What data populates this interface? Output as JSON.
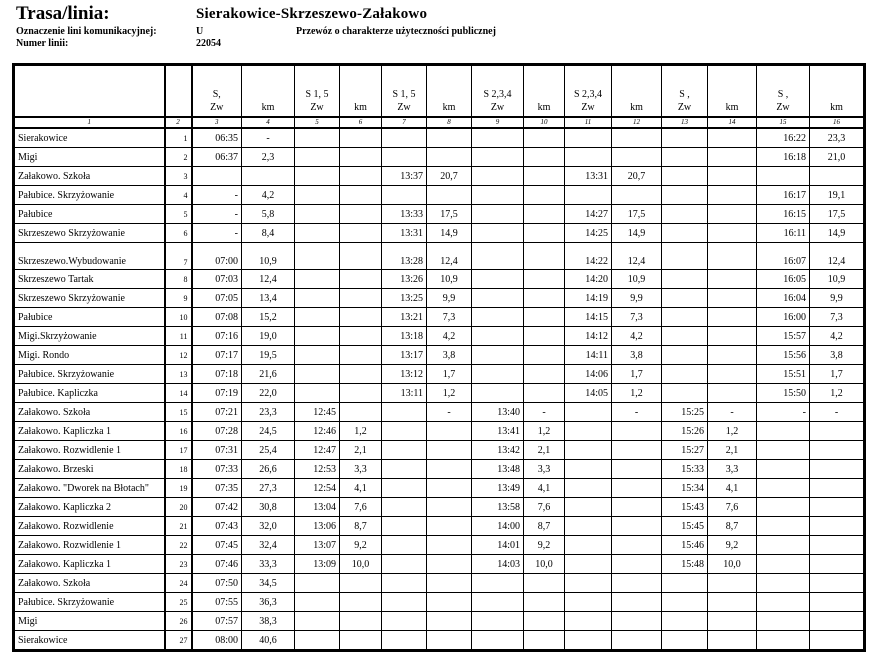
{
  "header": {
    "title": "Trasa/linia:",
    "route": "Sierakowice-Skrzeszewo-Załakowo",
    "designation_label": "Oznaczenie lini komunikacyjnej:",
    "designation_value": "U",
    "line_number_label": "Numer linii:",
    "line_number_value": "22054",
    "service_note": "Przewóz o charakterze użyteczności publicznej"
  },
  "table": {
    "column_headers": [
      "",
      "",
      "S,\nZw",
      "km",
      "S 1, 5\nZw",
      "km",
      "S 1, 5\nZw",
      "km",
      "S 2,3,4\nZw",
      "km",
      "S 2,3,4\nZw",
      "km",
      "S ,\nZw",
      "km",
      "S ,\nZw",
      "km"
    ],
    "column_numbers": [
      "1",
      "2",
      "3",
      "4",
      "5",
      "6",
      "7",
      "8",
      "9",
      "10",
      "11",
      "12",
      "13",
      "14",
      "15",
      "16"
    ],
    "rows": [
      [
        "Sierakowice",
        "1",
        "06:35",
        "-",
        "",
        "",
        "",
        "",
        "",
        "",
        "",
        "",
        "",
        "",
        "16:22",
        "23,3"
      ],
      [
        "Migi",
        "2",
        "06:37",
        "2,3",
        "",
        "",
        "",
        "",
        "",
        "",
        "",
        "",
        "",
        "",
        "16:18",
        "21,0"
      ],
      [
        "Załakowo. Szkoła",
        "3",
        "",
        "",
        "",
        "",
        "13:37",
        "20,7",
        "",
        "",
        "13:31",
        "20,7",
        "",
        "",
        "",
        ""
      ],
      [
        "Pałubice. Skrzyżowanie",
        "4",
        "-",
        "4,2",
        "",
        "",
        "",
        "",
        "",
        "",
        "",
        "",
        "",
        "",
        "16:17",
        "19,1"
      ],
      [
        "Pałubice",
        "5",
        "-",
        "5,8",
        "",
        "",
        "13:33",
        "17,5",
        "",
        "",
        "14:27",
        "17,5",
        "",
        "",
        "16:15",
        "17,5"
      ],
      [
        "Skrzeszewo Skrzyżowanie",
        "6",
        "-",
        "8,4",
        "",
        "",
        "13:31",
        "14,9",
        "",
        "",
        "14:25",
        "14,9",
        "",
        "",
        "16:11",
        "14,9"
      ],
      [
        "Skrzeszewo.Wybudowanie",
        "7",
        "07:00",
        "10,9",
        "",
        "",
        "13:28",
        "12,4",
        "",
        "",
        "14:22",
        "12,4",
        "",
        "",
        "16:07",
        "12,4"
      ],
      [
        "Skrzeszewo Tartak",
        "8",
        "07:03",
        "12,4",
        "",
        "",
        "13:26",
        "10,9",
        "",
        "",
        "14:20",
        "10,9",
        "",
        "",
        "16:05",
        "10,9"
      ],
      [
        "Skrzeszewo Skrzyżowanie",
        "9",
        "07:05",
        "13,4",
        "",
        "",
        "13:25",
        "9,9",
        "",
        "",
        "14:19",
        "9,9",
        "",
        "",
        "16:04",
        "9,9"
      ],
      [
        "Pałubice",
        "10",
        "07:08",
        "15,2",
        "",
        "",
        "13:21",
        "7,3",
        "",
        "",
        "14:15",
        "7,3",
        "",
        "",
        "16:00",
        "7,3"
      ],
      [
        "Migi.Skrzyżowanie",
        "11",
        "07:16",
        "19,0",
        "",
        "",
        "13:18",
        "4,2",
        "",
        "",
        "14:12",
        "4,2",
        "",
        "",
        "15:57",
        "4,2"
      ],
      [
        "Migi. Rondo",
        "12",
        "07:17",
        "19,5",
        "",
        "",
        "13:17",
        "3,8",
        "",
        "",
        "14:11",
        "3,8",
        "",
        "",
        "15:56",
        "3,8"
      ],
      [
        "Pałubice. Skrzyżowanie",
        "13",
        "07:18",
        "21,6",
        "",
        "",
        "13:12",
        "1,7",
        "",
        "",
        "14:06",
        "1,7",
        "",
        "",
        "15:51",
        "1,7"
      ],
      [
        "Pałubice. Kapliczka",
        "14",
        "07:19",
        "22,0",
        "",
        "",
        "13:11",
        "1,2",
        "",
        "",
        "14:05",
        "1,2",
        "",
        "",
        "15:50",
        "1,2"
      ],
      [
        "Załakowo. Szkoła",
        "15",
        "07:21",
        "23,3",
        "12:45",
        "",
        "",
        "-",
        "13:40",
        "-",
        "",
        "-",
        "15:25",
        "-",
        "-",
        "-"
      ],
      [
        "Załakowo. Kapliczka 1",
        "16",
        "07:28",
        "24,5",
        "12:46",
        "1,2",
        "",
        "",
        "13:41",
        "1,2",
        "",
        "",
        "15:26",
        "1,2",
        "",
        ""
      ],
      [
        "Załakowo. Rozwidlenie 1",
        "17",
        "07:31",
        "25,4",
        "12:47",
        "2,1",
        "",
        "",
        "13:42",
        "2,1",
        "",
        "",
        "15:27",
        "2,1",
        "",
        ""
      ],
      [
        "Załakowo. Brzeski",
        "18",
        "07:33",
        "26,6",
        "12:53",
        "3,3",
        "",
        "",
        "13:48",
        "3,3",
        "",
        "",
        "15:33",
        "3,3",
        "",
        ""
      ],
      [
        "Załakowo. \"Dworek na Błotach\"",
        "19",
        "07:35",
        "27,3",
        "12:54",
        "4,1",
        "",
        "",
        "13:49",
        "4,1",
        "",
        "",
        "15:34",
        "4,1",
        "",
        ""
      ],
      [
        "Załakowo. Kapliczka 2",
        "20",
        "07:42",
        "30,8",
        "13:04",
        "7,6",
        "",
        "",
        "13:58",
        "7,6",
        "",
        "",
        "15:43",
        "7,6",
        "",
        ""
      ],
      [
        "Załakowo. Rozwidlenie",
        "21",
        "07:43",
        "32,0",
        "13:06",
        "8,7",
        "",
        "",
        "14:00",
        "8,7",
        "",
        "",
        "15:45",
        "8,7",
        "",
        ""
      ],
      [
        "Załakowo. Rozwidlenie 1",
        "22",
        "07:45",
        "32,4",
        "13:07",
        "9,2",
        "",
        "",
        "14:01",
        "9,2",
        "",
        "",
        "15:46",
        "9,2",
        "",
        ""
      ],
      [
        "Załakowo. Kapliczka 1",
        "23",
        "07:46",
        "33,3",
        "13:09",
        "10,0",
        "",
        "",
        "14:03",
        "10,0",
        "",
        "",
        "15:48",
        "10,0",
        "",
        ""
      ],
      [
        "Załakowo. Szkoła",
        "24",
        "07:50",
        "34,5",
        "",
        "",
        "",
        "",
        "",
        "",
        "",
        "",
        "",
        "",
        "",
        ""
      ],
      [
        "Pałubice. Skrzyżowanie",
        "25",
        "07:55",
        "36,3",
        "",
        "",
        "",
        "",
        "",
        "",
        "",
        "",
        "",
        "",
        "",
        ""
      ],
      [
        "Migi",
        "26",
        "07:57",
        "38,3",
        "",
        "",
        "",
        "",
        "",
        "",
        "",
        "",
        "",
        "",
        "",
        ""
      ],
      [
        "Sierakowice",
        "27",
        "08:00",
        "40,6",
        "",
        "",
        "",
        "",
        "",
        "",
        "",
        "",
        "",
        "",
        "",
        ""
      ]
    ]
  }
}
